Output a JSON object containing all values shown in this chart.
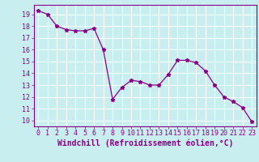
{
  "x": [
    0,
    1,
    2,
    3,
    4,
    5,
    6,
    7,
    8,
    9,
    10,
    11,
    12,
    13,
    14,
    15,
    16,
    17,
    18,
    19,
    20,
    21,
    22,
    23
  ],
  "y": [
    19.3,
    19.0,
    18.0,
    17.7,
    17.6,
    17.6,
    17.8,
    16.0,
    11.8,
    12.8,
    13.4,
    13.3,
    13.0,
    13.0,
    13.9,
    15.1,
    15.1,
    14.9,
    14.2,
    13.0,
    12.0,
    11.6,
    11.1,
    9.9
  ],
  "line_color": "#880088",
  "marker": "*",
  "markersize": 3.5,
  "linewidth": 0.9,
  "xlabel": "Windchill (Refroidissement éolien,°C)",
  "xlabel_fontsize": 7,
  "ylim": [
    9.5,
    19.8
  ],
  "xlim": [
    -0.5,
    23.5
  ],
  "yticks": [
    10,
    11,
    12,
    13,
    14,
    15,
    16,
    17,
    18,
    19
  ],
  "xticks": [
    0,
    1,
    2,
    3,
    4,
    5,
    6,
    7,
    8,
    9,
    10,
    11,
    12,
    13,
    14,
    15,
    16,
    17,
    18,
    19,
    20,
    21,
    22,
    23
  ],
  "bg_color": "#c8eef0",
  "grid_color": "#ffffff",
  "tick_color": "#880088",
  "tick_fontsize": 6,
  "spine_color": "#880088"
}
